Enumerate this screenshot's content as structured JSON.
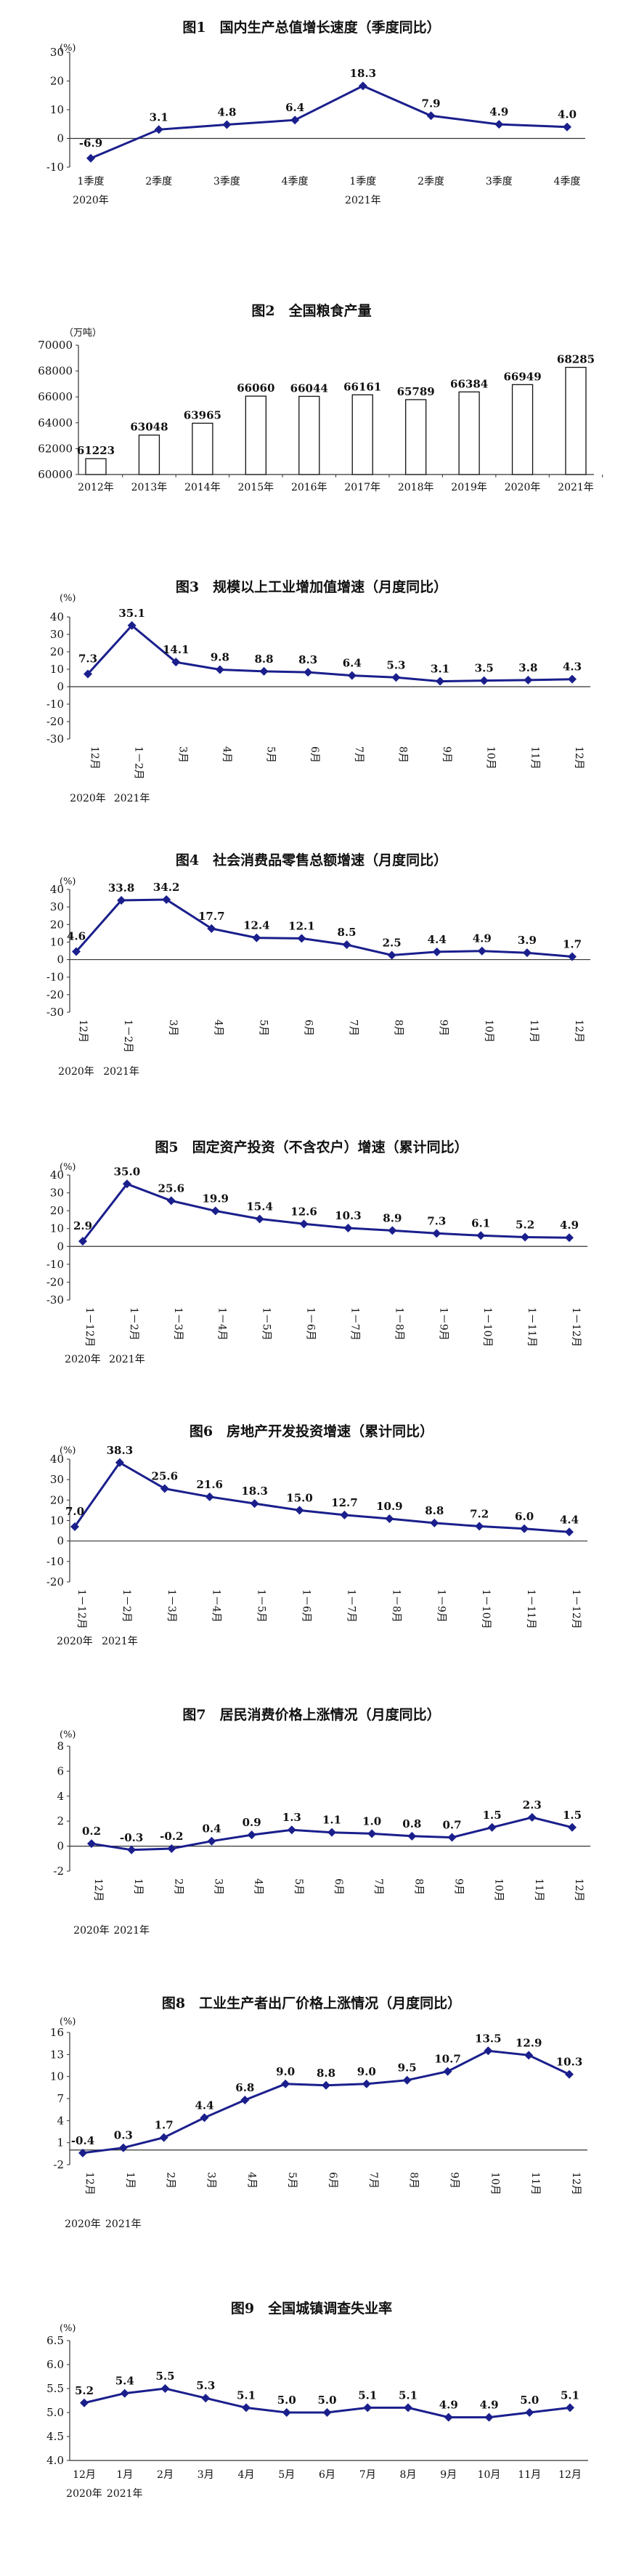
{
  "chart_data": [
    {
      "type": "line",
      "title": "图1　国内生产总值增长速度（季度同比）",
      "unit": "(%)",
      "categories": [
        "1季度",
        "2季度",
        "3季度",
        "4季度",
        "1季度",
        "2季度",
        "3季度",
        "4季度"
      ],
      "year_labels": [
        {
          "text": "2020年",
          "index": 0
        },
        {
          "text": "2021年",
          "index": 4
        }
      ],
      "ylim": [
        -10,
        30
      ],
      "yticks": [
        -10,
        0,
        10,
        20,
        30
      ],
      "series": [
        {
          "values": [
            -6.9,
            3.1,
            4.8,
            6.4,
            18.3,
            7.9,
            4.9,
            4.0
          ],
          "labels": [
            "-6.9",
            "3.1",
            "4.8",
            "6.4",
            "18.3",
            "7.9",
            "4.9",
            "4.0"
          ]
        }
      ],
      "color": "#1a1f8c"
    },
    {
      "type": "bar",
      "title": "图2　全国粮食产量",
      "unit": "（万吨）",
      "categories": [
        "2012年",
        "2013年",
        "2014年",
        "2015年",
        "2016年",
        "2017年",
        "2018年",
        "2019年",
        "2020年",
        "2021年"
      ],
      "ylim": [
        60000,
        70000
      ],
      "yticks": [
        60000,
        62000,
        64000,
        66000,
        68000,
        70000
      ],
      "values": [
        61223,
        63048,
        63965,
        66060,
        66044,
        66161,
        65789,
        66384,
        66949,
        68285
      ],
      "labels": [
        "61223",
        "63048",
        "63965",
        "66060",
        "66044",
        "66161",
        "65789",
        "66384",
        "66949",
        "68285"
      ]
    },
    {
      "type": "line",
      "title": "图3　规模以上工业增加值增速（月度同比）",
      "unit": "(%)",
      "categories": [
        "12月",
        "1－2月",
        "3月",
        "4月",
        "5月",
        "6月",
        "7月",
        "8月",
        "9月",
        "10月",
        "11月",
        "12月"
      ],
      "year_labels": [
        {
          "text": "2020年",
          "index": 0
        },
        {
          "text": "2021年",
          "index": 1
        }
      ],
      "ylim": [
        -30,
        40
      ],
      "yticks": [
        -30,
        -20,
        -10,
        0,
        10,
        20,
        30,
        40
      ],
      "series": [
        {
          "values": [
            7.3,
            35.1,
            14.1,
            9.8,
            8.8,
            8.3,
            6.4,
            5.3,
            3.1,
            3.5,
            3.8,
            4.3
          ],
          "labels": [
            "7.3",
            "35.1",
            "14.1",
            "9.8",
            "8.8",
            "8.3",
            "6.4",
            "5.3",
            "3.1",
            "3.5",
            "3.8",
            "4.3"
          ]
        }
      ],
      "color": "#1a1f8c"
    },
    {
      "type": "line",
      "title": "图4　社会消费品零售总额增速（月度同比）",
      "unit": "(%)",
      "categories": [
        "12月",
        "1－2月",
        "3月",
        "4月",
        "5月",
        "6月",
        "7月",
        "8月",
        "9月",
        "10月",
        "11月",
        "12月"
      ],
      "year_labels": [
        {
          "text": "2020年",
          "index": 0
        },
        {
          "text": "2021年",
          "index": 1
        }
      ],
      "ylim": [
        -30,
        40
      ],
      "yticks": [
        -30,
        -20,
        -10,
        0,
        10,
        20,
        30,
        40
      ],
      "series": [
        {
          "values": [
            4.6,
            33.8,
            34.2,
            17.7,
            12.4,
            12.1,
            8.5,
            2.5,
            4.4,
            4.9,
            3.9,
            1.7
          ],
          "labels": [
            "4.6",
            "33.8",
            "34.2",
            "17.7",
            "12.4",
            "12.1",
            "8.5",
            "2.5",
            "4.4",
            "4.9",
            "3.9",
            "1.7"
          ]
        }
      ],
      "color": "#1a1f8c"
    },
    {
      "type": "line",
      "title": "图5　固定资产投资（不含农户）增速（累计同比）",
      "unit": "(%)",
      "categories": [
        "1－12月",
        "1－2月",
        "1－3月",
        "1－4月",
        "1－5月",
        "1－6月",
        "1－7月",
        "1－8月",
        "1－9月",
        "1－10月",
        "1－11月",
        "1－12月"
      ],
      "year_labels": [
        {
          "text": "2020年",
          "index": 0
        },
        {
          "text": "2021年",
          "index": 1
        }
      ],
      "ylim": [
        -30,
        40
      ],
      "yticks": [
        -30,
        -20,
        -10,
        0,
        10,
        20,
        30,
        40
      ],
      "series": [
        {
          "values": [
            2.9,
            35.0,
            25.6,
            19.9,
            15.4,
            12.6,
            10.3,
            8.9,
            7.3,
            6.1,
            5.2,
            4.9
          ],
          "labels": [
            "2.9",
            "35.0",
            "25.6",
            "19.9",
            "15.4",
            "12.6",
            "10.3",
            "8.9",
            "7.3",
            "6.1",
            "5.2",
            "4.9"
          ]
        }
      ],
      "color": "#1a1f8c"
    },
    {
      "type": "line",
      "title": "图6　房地产开发投资增速（累计同比）",
      "unit": "(%)",
      "categories": [
        "1－12月",
        "1－2月",
        "1－3月",
        "1－4月",
        "1－5月",
        "1－6月",
        "1－7月",
        "1－8月",
        "1－9月",
        "1－10月",
        "1－11月",
        "1－12月"
      ],
      "year_labels": [
        {
          "text": "2020年",
          "index": 0
        },
        {
          "text": "2021年",
          "index": 1
        }
      ],
      "ylim": [
        -20,
        40
      ],
      "yticks": [
        -20,
        -10,
        0,
        10,
        20,
        30,
        40
      ],
      "series": [
        {
          "values": [
            7.0,
            38.3,
            25.6,
            21.6,
            18.3,
            15.0,
            12.7,
            10.9,
            8.8,
            7.2,
            6.0,
            4.4
          ],
          "labels": [
            "7.0",
            "38.3",
            "25.6",
            "21.6",
            "18.3",
            "15.0",
            "12.7",
            "10.9",
            "8.8",
            "7.2",
            "6.0",
            "4.4"
          ]
        }
      ],
      "color": "#1a1f8c"
    },
    {
      "type": "line",
      "title": "图7　居民消费价格上涨情况（月度同比）",
      "unit": "(%)",
      "categories": [
        "12月",
        "1月",
        "2月",
        "3月",
        "4月",
        "5月",
        "6月",
        "7月",
        "8月",
        "9月",
        "10月",
        "11月",
        "12月"
      ],
      "year_labels": [
        {
          "text": "2020年",
          "index": 0
        },
        {
          "text": "2021年",
          "index": 1
        }
      ],
      "ylim": [
        -2,
        8
      ],
      "yticks": [
        -2,
        0,
        2,
        4,
        6,
        8
      ],
      "series": [
        {
          "values": [
            0.2,
            -0.3,
            -0.2,
            0.4,
            0.9,
            1.3,
            1.1,
            1.0,
            0.8,
            0.7,
            1.5,
            2.3,
            1.5
          ],
          "labels": [
            "0.2",
            "-0.3",
            "-0.2",
            "0.4",
            "0.9",
            "1.3",
            "1.1",
            "1.0",
            "0.8",
            "0.7",
            "1.5",
            "2.3",
            "1.5"
          ]
        }
      ],
      "color": "#1a1f8c"
    },
    {
      "type": "line",
      "title": "图8　工业生产者出厂价格上涨情况（月度同比）",
      "unit": "(%)",
      "categories": [
        "12月",
        "1月",
        "2月",
        "3月",
        "4月",
        "5月",
        "6月",
        "7月",
        "8月",
        "9月",
        "10月",
        "11月",
        "12月"
      ],
      "year_labels": [
        {
          "text": "2020年",
          "index": 0
        },
        {
          "text": "2021年",
          "index": 1
        }
      ],
      "ylim": [
        -2,
        16
      ],
      "yticks": [
        -2,
        1,
        4,
        7,
        10,
        13,
        16
      ],
      "series": [
        {
          "values": [
            -0.4,
            0.3,
            1.7,
            4.4,
            6.8,
            9.0,
            8.8,
            9.0,
            9.5,
            10.7,
            13.5,
            12.9,
            10.3
          ],
          "labels": [
            "-0.4",
            "0.3",
            "1.7",
            "4.4",
            "6.8",
            "9.0",
            "8.8",
            "9.0",
            "9.5",
            "10.7",
            "13.5",
            "12.9",
            "10.3"
          ]
        }
      ],
      "color": "#1a1f8c"
    },
    {
      "type": "line",
      "title": "图9　全国城镇调查失业率",
      "unit": "(%)",
      "categories": [
        "12月",
        "1月",
        "2月",
        "3月",
        "4月",
        "5月",
        "6月",
        "7月",
        "8月",
        "9月",
        "10月",
        "11月",
        "12月"
      ],
      "year_labels": [
        {
          "text": "2020年",
          "index": 0
        },
        {
          "text": "2021年",
          "index": 1
        }
      ],
      "ylim": [
        4.0,
        6.5
      ],
      "yticks": [
        4.0,
        4.5,
        5.0,
        5.5,
        6.0,
        6.5
      ],
      "ytick_labels": [
        "4.0",
        "4.5",
        "5.0",
        "5.5",
        "6.0",
        "6.5"
      ],
      "series": [
        {
          "values": [
            5.2,
            5.4,
            5.5,
            5.3,
            5.1,
            5.0,
            5.0,
            5.1,
            5.1,
            4.9,
            4.9,
            5.0,
            5.1
          ],
          "labels": [
            "5.2",
            "5.4",
            "5.5",
            "5.3",
            "5.1",
            "5.0",
            "5.0",
            "5.1",
            "5.1",
            "4.9",
            "4.9",
            "5.0",
            "5.1"
          ]
        }
      ],
      "color": "#1a1f8c"
    }
  ]
}
